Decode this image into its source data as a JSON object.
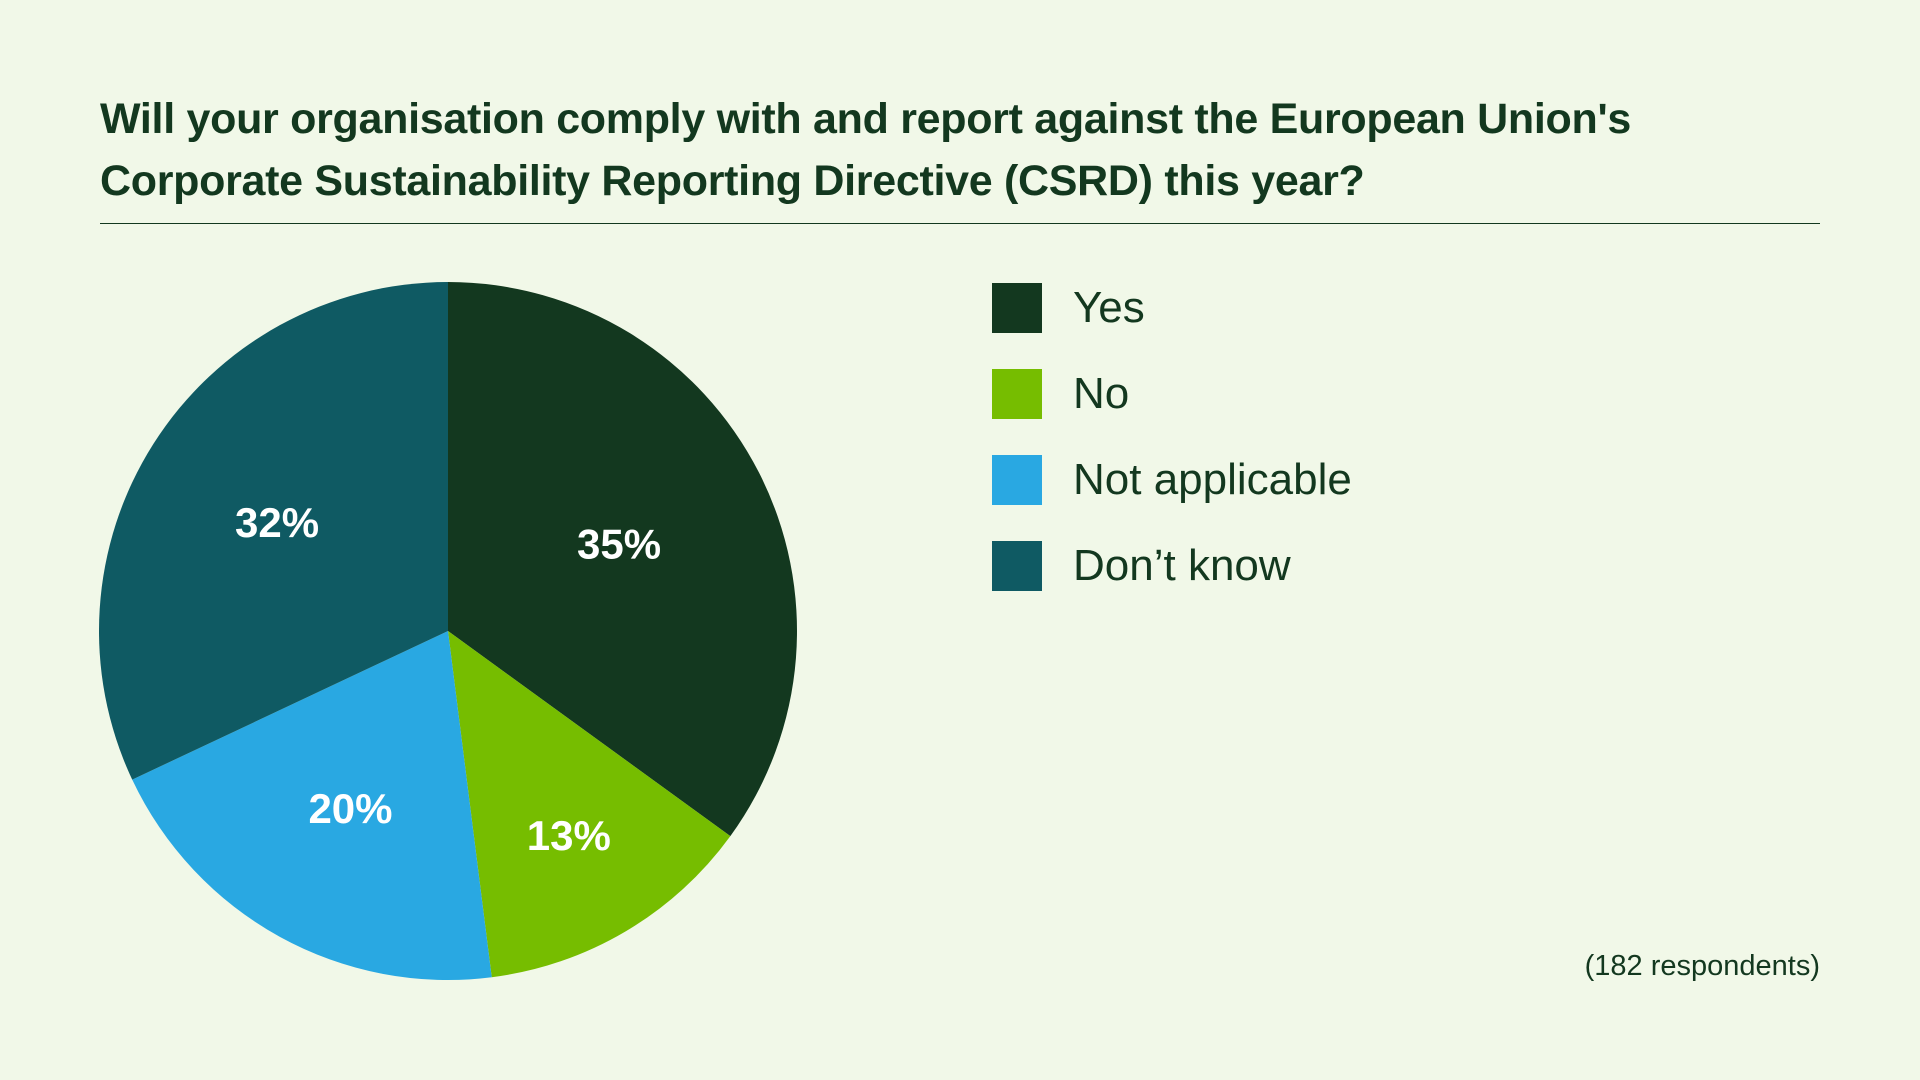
{
  "title": "Will your organisation comply with and report against the European Union's Corporate Sustainability Reporting Directive (CSRD) this year?",
  "footnote": "(182 respondents)",
  "colors": {
    "background": "#f1f8e8",
    "text": "#13381f",
    "label": "#ffffff"
  },
  "chart_data": {
    "type": "pie",
    "title": "Will your organisation comply with and report against the European Union's Corporate Sustainability Reporting Directive (CSRD) this year?",
    "categories": [
      "Yes",
      "No",
      "Not applicable",
      "Don’t know"
    ],
    "values": [
      35,
      13,
      20,
      32
    ],
    "data_labels": [
      "35%",
      "13%",
      "20%",
      "32%"
    ],
    "colors": [
      "#13381f",
      "#76bd00",
      "#29a8e2",
      "#0f5a63"
    ],
    "start_angle": "12 o'clock",
    "direction": "clockwise",
    "legend_position": "right",
    "note": "(182 respondents)"
  }
}
